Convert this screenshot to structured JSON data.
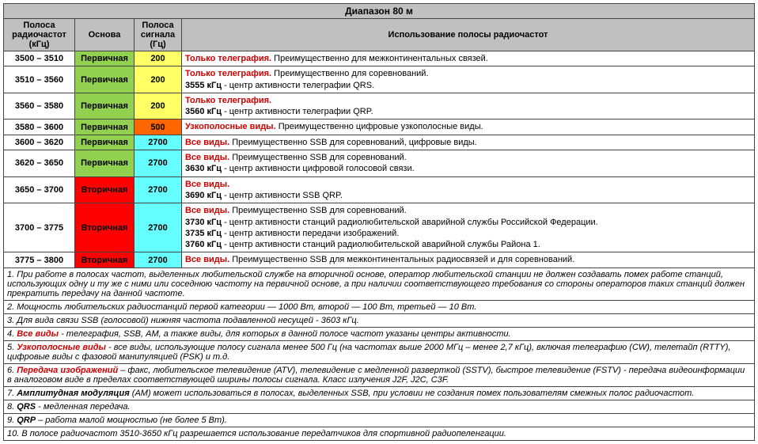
{
  "title": "Диапазон 80 м",
  "headers": [
    "Полоса радиочастот (кГц)",
    "Основа",
    "Полоса сигнала (Гц)",
    "Использование полосы радиочастот"
  ],
  "colors": {
    "header_bg": "#c0c0c0",
    "green": "#92d050",
    "red": "#ff0000",
    "yellow": "#ffff66",
    "orange": "#ff6600",
    "cyan": "#66ffff",
    "red_text": "#cc0000"
  },
  "rows": [
    {
      "freq": "3500 – 3510",
      "basis": "Первичная",
      "basis_color": "green",
      "bw": "200",
      "bw_color": "yellow",
      "usage": [
        {
          "red": "Только телеграфия.",
          "rest": " Преимущественно для межконтинентальных связей."
        }
      ]
    },
    {
      "freq": "3510 – 3560",
      "basis": "Первичная",
      "basis_color": "green",
      "bw": "200",
      "bw_color": "yellow",
      "usage": [
        {
          "red": "Только телеграфия.",
          "rest": " Преимущественно для соревнований."
        },
        {
          "bold": "3555 кГц",
          "rest": " - центр активности телеграфии QRS."
        }
      ]
    },
    {
      "freq": "3560 – 3580",
      "basis": "Первичная",
      "basis_color": "green",
      "bw": "200",
      "bw_color": "yellow",
      "usage": [
        {
          "red": "Только телеграфия."
        },
        {
          "bold": "3560 кГц",
          "rest": " - центр активности телеграфии QRP."
        }
      ]
    },
    {
      "freq": "3580 – 3600",
      "basis": "Первичная",
      "basis_color": "green",
      "bw": "500",
      "bw_color": "orange",
      "usage": [
        {
          "red": "Узкополосные виды.",
          "rest": " Преимущественно цифровые узкополосные виды."
        }
      ]
    },
    {
      "freq": "3600 – 3620",
      "basis": "Первичная",
      "basis_color": "green",
      "bw": "2700",
      "bw_color": "cyan",
      "usage": [
        {
          "red": "Все виды.",
          "rest": " Преимущественно SSB для соревнований, цифровые виды."
        }
      ]
    },
    {
      "freq": "3620 – 3650",
      "basis": "Первичная",
      "basis_color": "green",
      "bw": "2700",
      "bw_color": "cyan",
      "usage": [
        {
          "red": "Все виды.",
          "rest": " Преимущественно SSB для соревнований."
        },
        {
          "bold": "3630 кГц",
          "rest": " - центр активности цифровой голосовой связи."
        }
      ]
    },
    {
      "freq": "3650 – 3700",
      "basis": "Вторичная",
      "basis_color": "red",
      "bw": "2700",
      "bw_color": "cyan",
      "usage": [
        {
          "red": "Все виды."
        },
        {
          "bold": "3690 кГц",
          "rest": " - центр активности SSB QRP."
        }
      ]
    },
    {
      "freq": "3700 – 3775",
      "basis": "Вторичная",
      "basis_color": "red",
      "bw": "2700",
      "bw_color": "cyan",
      "usage": [
        {
          "red": "Все виды.",
          "rest": " Преимущественно SSB для соревнований."
        },
        {
          "bold": "3730 кГц",
          "rest": " - центр активности станций радиолюбительской аварийной службы Российской Федерации."
        },
        {
          "bold": "3735 кГц",
          "rest": " - центр активности передачи изображений."
        },
        {
          "bold": "3760 кГц",
          "rest": " - центр активности станций радиолюбительской аварийной службы Района 1."
        }
      ]
    },
    {
      "freq": "3775 – 3800",
      "basis": "Вторичная",
      "basis_color": "red",
      "bw": "2700",
      "bw_color": "cyan",
      "usage": [
        {
          "red": "Все виды.",
          "rest": " Преимущественно SSB для межконтинентальных радиосвязей и для соревнований."
        }
      ]
    }
  ],
  "notes": [
    {
      "n": "1.",
      "text": " При работе в полосах частот, выделенных любительской службе на вторичной основе, оператор любительской станции не должен создавать помех работе станций, использующих одну и ту же с ними или соседнюю частоту на первичной основе, а при наличии соответствующего требования со стороны операторов таких станций должен прекратить передачу на данной частоте."
    },
    {
      "n": "2.",
      "text": " Мощность любительских радиостанций первой категории — 1000 Вт, второй — 100 Вт, третьей — 10 Вт."
    },
    {
      "n": "3.",
      "text": " Для вида связи SSB (голосовой) нижняя частота подавленной несущей - 3603 кГц."
    },
    {
      "n": "4. ",
      "red": "Все виды",
      "text": " - телеграфия, SSB, АМ, а также виды, для которых в данной полосе частот указаны центры активности."
    },
    {
      "n": "5. ",
      "red": "Узкополосные виды",
      "text": " - все виды, использующие полосу сигнала менее 500 Гц (на частотах выше 2000 МГц – менее 2,7 кГц), включая телеграфию (CW), телетайп (RTTY), цифровые виды с фазовой манипуляцией (PSK) и т.д."
    },
    {
      "n": "6. ",
      "red": "Передача изображений",
      "text": " – факс, любительское телевидение (АТV), телевидение с медленной разверткой (SSTV), быстрое телевидение (FSTV) - передача видеоинформации в аналоговом виде в пределах соответствующей ширины полосы сигнала. Класс излучения J2F, J2C, C3F."
    },
    {
      "n": "7. ",
      "bold": "Амплитудная модуляция",
      "text": " (АМ) может использоваться в полосах, выделенных SSB, при условии не создания помех пользователям смежных полос радиочастот."
    },
    {
      "n": "8. ",
      "bold": "QRS",
      "text": " - медленная передача."
    },
    {
      "n": "9. ",
      "bold": "QRP",
      "text": " – работа малой мощностью (не более 5 Вт)."
    },
    {
      "n": "10.",
      "text": " В полосе радиочастот 3510-3650 кГц разрешается использование передатчиков для спортивной радиопеленгации."
    }
  ]
}
